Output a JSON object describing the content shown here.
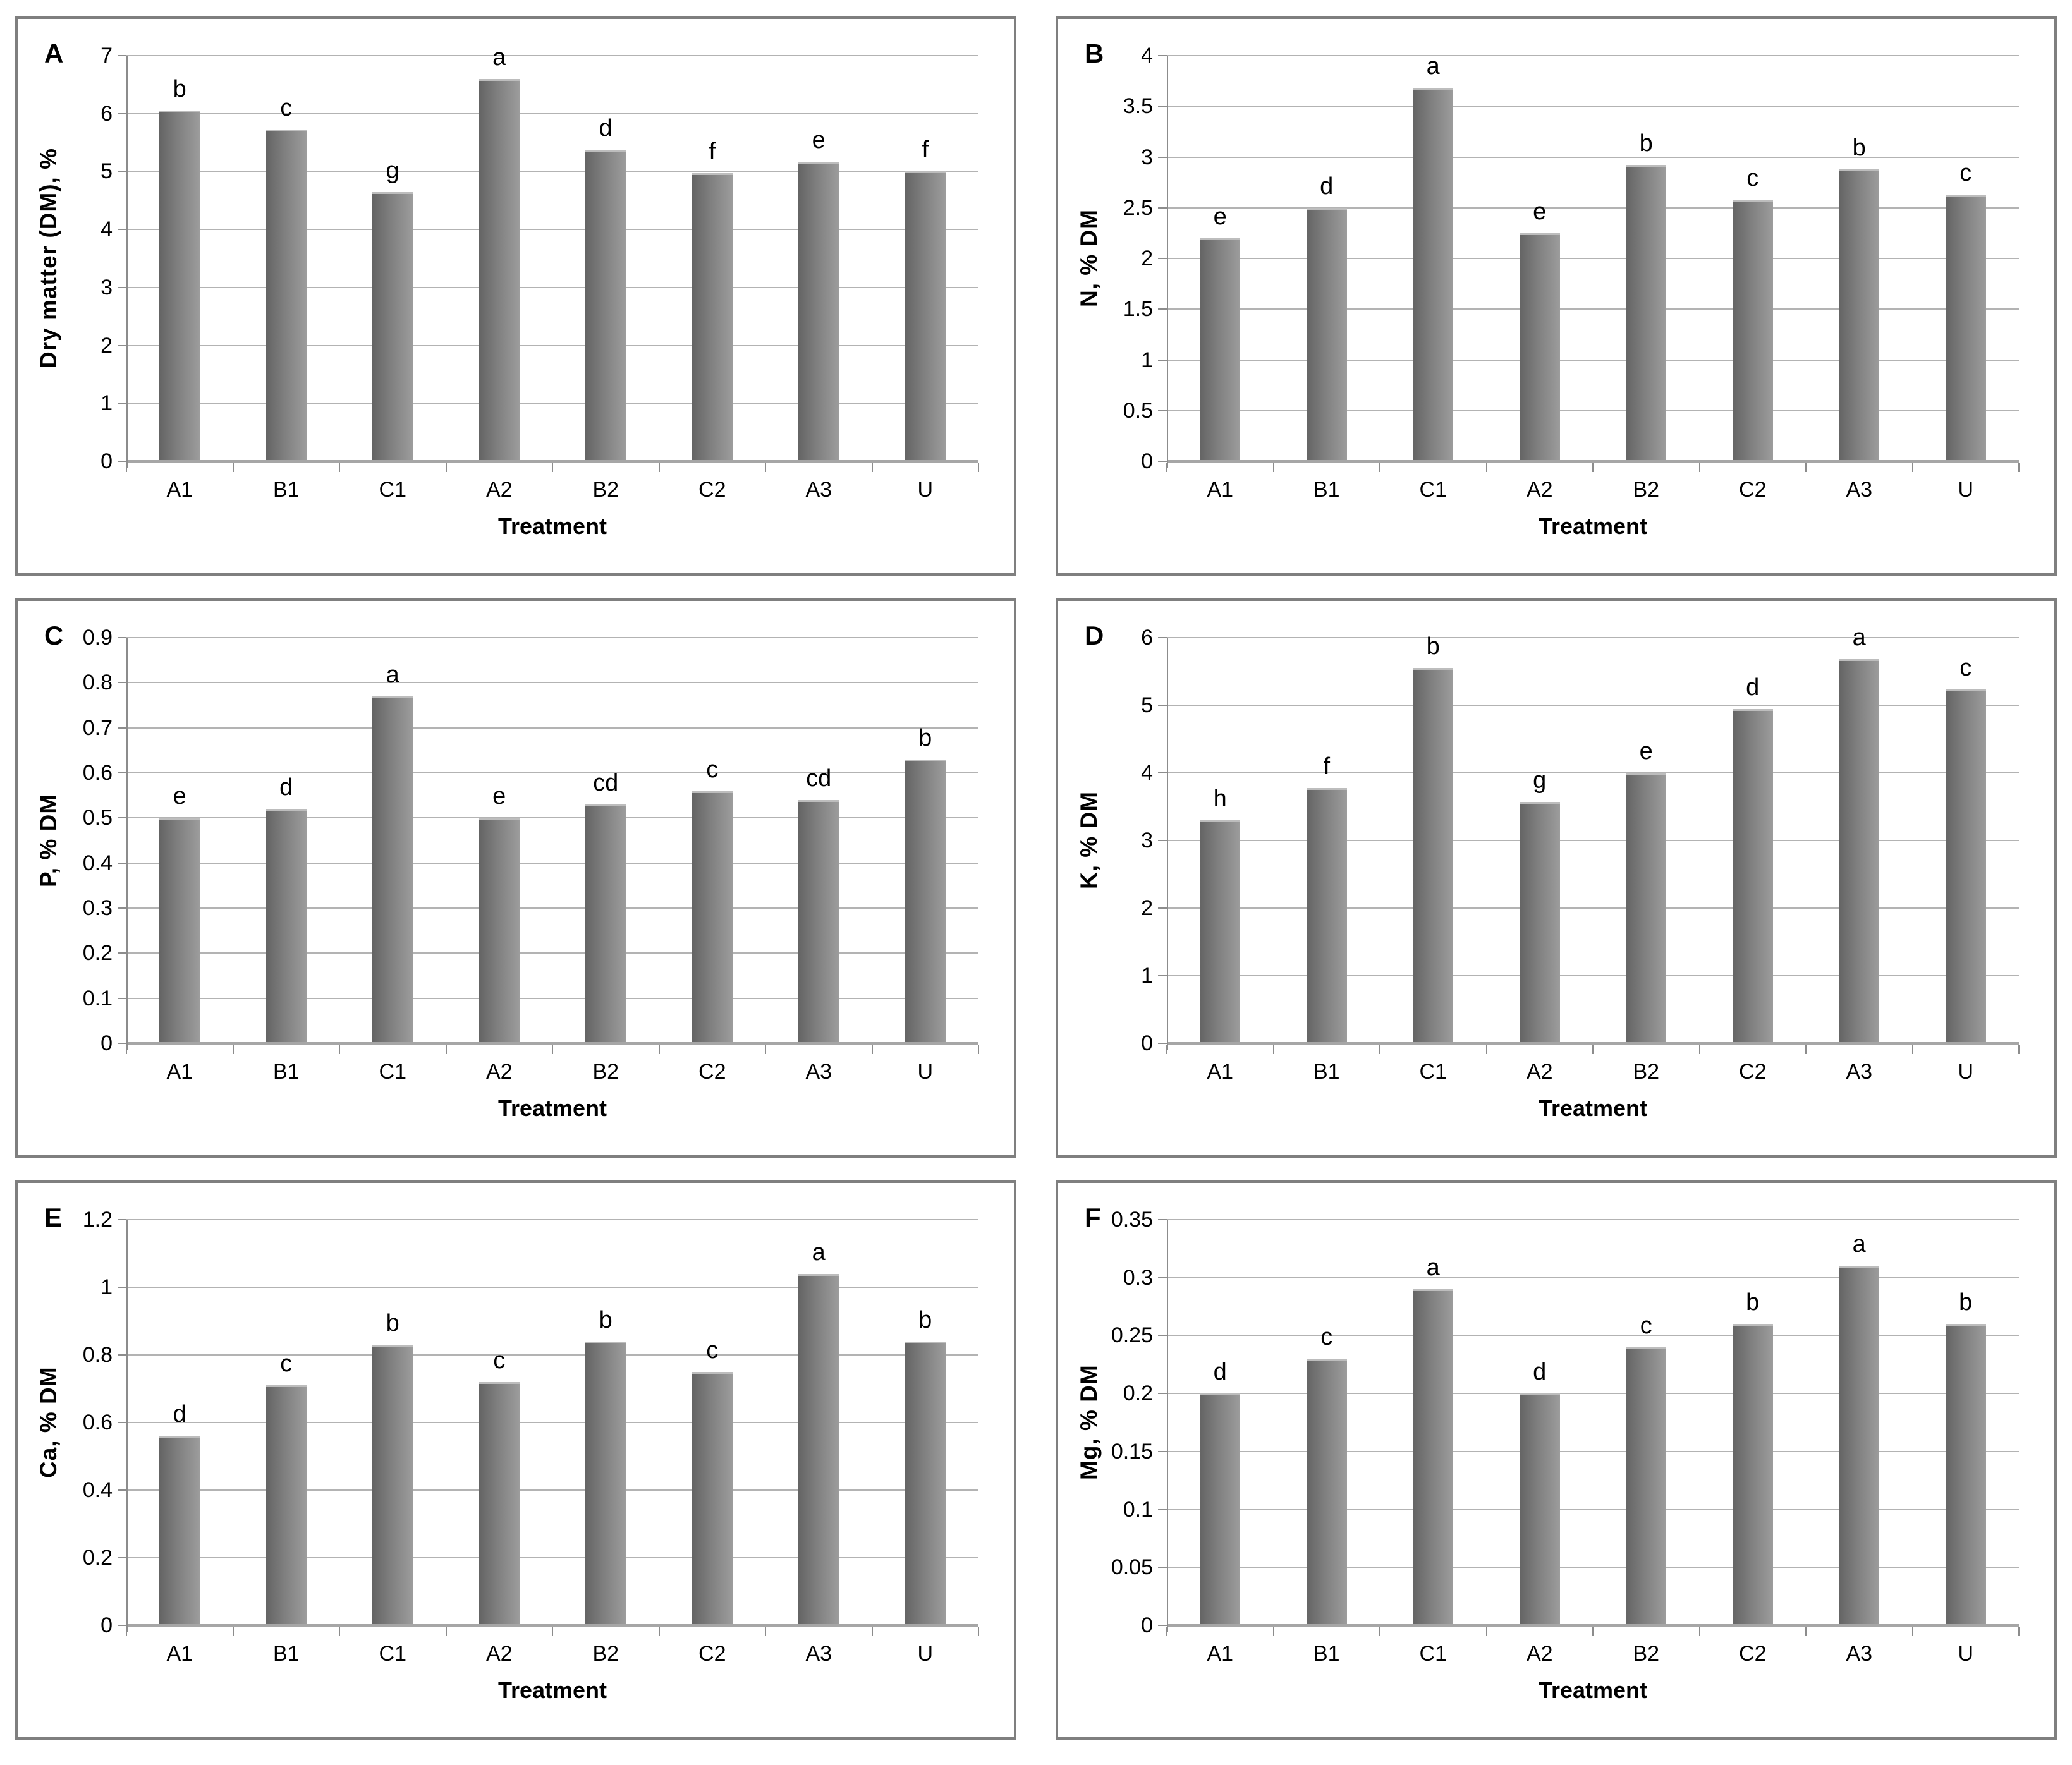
{
  "figure": {
    "x_axis_title": "Treatment",
    "categories": [
      "A1",
      "B1",
      "C1",
      "A2",
      "B2",
      "C2",
      "A3",
      "U"
    ]
  },
  "style": {
    "bar_gradient_dark": "#646464",
    "bar_gradient_light": "#9c9c9c",
    "bar_top_highlight": "#bdbdbd",
    "gridline_color": "#b3b3b3",
    "axis_color": "#8c8c8c",
    "panel_border_color": "#7f7f7f",
    "text_color": "#000000",
    "background": "#ffffff"
  },
  "chart_data": [
    {
      "type": "bar",
      "panel_label": "A",
      "ylabel": "Dry matter (DM), %",
      "xlabel": "Treatment",
      "ylim": [
        0,
        7
      ],
      "grid": true,
      "ytick_values": [
        0,
        1,
        2,
        3,
        4,
        5,
        6,
        7
      ],
      "ytick_labels": [
        "0",
        "1",
        "2",
        "3",
        "4",
        "5",
        "6",
        "7"
      ],
      "categories": [
        "A1",
        "B1",
        "C1",
        "A2",
        "B2",
        "C2",
        "A3",
        "U"
      ],
      "values": [
        6.05,
        5.72,
        4.65,
        6.6,
        5.37,
        4.97,
        5.17,
        5.0
      ],
      "sig_letters": [
        "b",
        "c",
        "g",
        "a",
        "d",
        "f",
        "e",
        "f"
      ]
    },
    {
      "type": "bar",
      "panel_label": "B",
      "ylabel": "N, % DM",
      "xlabel": "Treatment",
      "ylim": [
        0,
        4
      ],
      "grid": true,
      "ytick_values": [
        0,
        0.5,
        1,
        1.5,
        2,
        2.5,
        3,
        3.5,
        4
      ],
      "ytick_labels": [
        "0",
        "0.5",
        "1",
        "1.5",
        "2",
        "2.5",
        "3",
        "3.5",
        "4"
      ],
      "categories": [
        "A1",
        "B1",
        "C1",
        "A2",
        "B2",
        "C2",
        "A3",
        "U"
      ],
      "values": [
        2.2,
        2.5,
        3.68,
        2.25,
        2.92,
        2.58,
        2.88,
        2.63
      ],
      "sig_letters": [
        "e",
        "d",
        "a",
        "e",
        "b",
        "c",
        "b",
        "c"
      ]
    },
    {
      "type": "bar",
      "panel_label": "C",
      "ylabel": "P, % DM",
      "xlabel": "Treatment",
      "ylim": [
        0,
        0.9
      ],
      "grid": true,
      "ytick_values": [
        0,
        0.1,
        0.2,
        0.3,
        0.4,
        0.5,
        0.6,
        0.7,
        0.8,
        0.9
      ],
      "ytick_labels": [
        "0",
        "0.1",
        "0.2",
        "0.3",
        "0.4",
        "0.5",
        "0.6",
        "0.7",
        "0.8",
        "0.9"
      ],
      "categories": [
        "A1",
        "B1",
        "C1",
        "A2",
        "B2",
        "C2",
        "A3",
        "U"
      ],
      "values": [
        0.5,
        0.52,
        0.77,
        0.5,
        0.53,
        0.56,
        0.54,
        0.63
      ],
      "sig_letters": [
        "e",
        "d",
        "a",
        "e",
        "cd",
        "c",
        "cd",
        "b"
      ]
    },
    {
      "type": "bar",
      "panel_label": "D",
      "ylabel": "K, % DM",
      "xlabel": "Treatment",
      "ylim": [
        0,
        6
      ],
      "grid": true,
      "ytick_values": [
        0,
        1,
        2,
        3,
        4,
        5,
        6
      ],
      "ytick_labels": [
        "0",
        "1",
        "2",
        "3",
        "4",
        "5",
        "6"
      ],
      "categories": [
        "A1",
        "B1",
        "C1",
        "A2",
        "B2",
        "C2",
        "A3",
        "U"
      ],
      "values": [
        3.3,
        3.78,
        5.55,
        3.57,
        4.0,
        4.94,
        5.68,
        5.23
      ],
      "sig_letters": [
        "h",
        "f",
        "b",
        "g",
        "e",
        "d",
        "a",
        "c"
      ]
    },
    {
      "type": "bar",
      "panel_label": "E",
      "ylabel": "Ca, % DM",
      "xlabel": "Treatment",
      "ylim": [
        0,
        1.2
      ],
      "grid": true,
      "ytick_values": [
        0,
        0.2,
        0.4,
        0.6,
        0.8,
        1,
        1.2
      ],
      "ytick_labels": [
        "0",
        "0.2",
        "0.4",
        "0.6",
        "0.8",
        "1",
        "1.2"
      ],
      "categories": [
        "A1",
        "B1",
        "C1",
        "A2",
        "B2",
        "C2",
        "A3",
        "U"
      ],
      "values": [
        0.56,
        0.71,
        0.83,
        0.72,
        0.84,
        0.75,
        1.04,
        0.84
      ],
      "sig_letters": [
        "d",
        "c",
        "b",
        "c",
        "b",
        "c",
        "a",
        "b"
      ]
    },
    {
      "type": "bar",
      "panel_label": "F",
      "ylabel": "Mg, % DM",
      "xlabel": "Treatment",
      "ylim": [
        0,
        0.35
      ],
      "grid": true,
      "ytick_values": [
        0,
        0.05,
        0.1,
        0.15,
        0.2,
        0.25,
        0.3,
        0.35
      ],
      "ytick_labels": [
        "0",
        "0.05",
        "0.1",
        "0.15",
        "0.2",
        "0.25",
        "0.3",
        "0.35"
      ],
      "categories": [
        "A1",
        "B1",
        "C1",
        "A2",
        "B2",
        "C2",
        "A3",
        "U"
      ],
      "values": [
        0.2,
        0.23,
        0.29,
        0.2,
        0.24,
        0.26,
        0.31,
        0.26
      ],
      "sig_letters": [
        "d",
        "c",
        "a",
        "d",
        "c",
        "b",
        "a",
        "b"
      ]
    }
  ]
}
